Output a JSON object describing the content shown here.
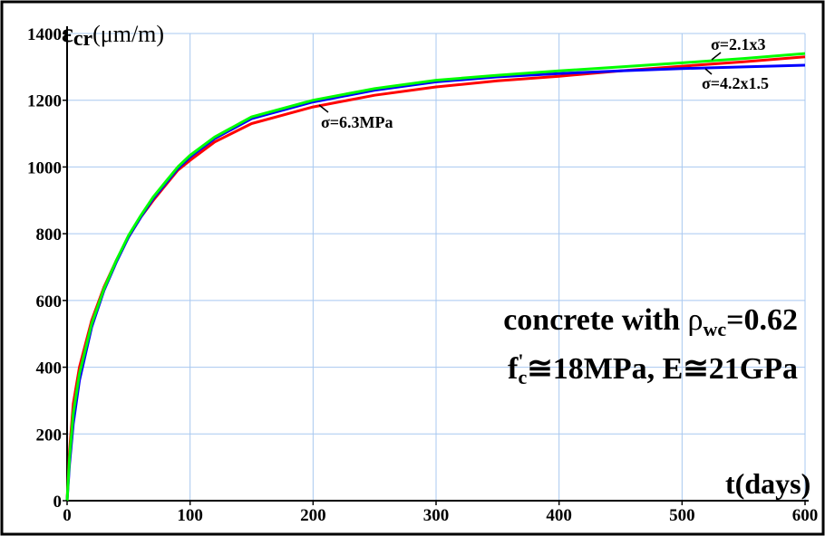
{
  "chart_data": {
    "type": "line",
    "title": "",
    "xlabel": "t(days)",
    "ylabel": "εcr(μm/m)",
    "ylabel_parts": {
      "symbol": "ε",
      "sub": "cr",
      "unit": "(μm/m)"
    },
    "xlim": [
      0,
      600
    ],
    "ylim": [
      0,
      1400
    ],
    "x_ticks": [
      "0",
      "100",
      "200",
      "300",
      "400",
      "500",
      "600"
    ],
    "y_ticks": [
      "0",
      "200",
      "400",
      "600",
      "800",
      "1000",
      "1200",
      "1400"
    ],
    "grid": true,
    "colors": {
      "red": "#ff0000",
      "blue": "#0000ff",
      "green": "#00ff00",
      "grid": "#a8c8f0"
    },
    "series": [
      {
        "name": "σ=6.3MPa",
        "color": "#ff0000",
        "x": [
          0,
          2,
          5,
          10,
          20,
          30,
          40,
          50,
          60,
          70,
          80,
          90,
          100,
          120,
          150,
          200,
          250,
          300,
          350,
          400,
          450,
          500,
          550,
          600
        ],
        "y": [
          0,
          150,
          290,
          400,
          540,
          640,
          720,
          790,
          850,
          900,
          945,
          990,
          1020,
          1075,
          1130,
          1180,
          1215,
          1240,
          1258,
          1272,
          1288,
          1302,
          1315,
          1330
        ]
      },
      {
        "name": "σ=4.2×1.5",
        "color": "#0000ff",
        "x": [
          0,
          2,
          5,
          10,
          20,
          30,
          40,
          50,
          60,
          70,
          80,
          90,
          100,
          120,
          150,
          200,
          250,
          300,
          350,
          400,
          450,
          500,
          550,
          600
        ],
        "y": [
          0,
          110,
          230,
          360,
          520,
          630,
          715,
          790,
          850,
          905,
          950,
          995,
          1030,
          1085,
          1145,
          1195,
          1230,
          1255,
          1270,
          1280,
          1288,
          1295,
          1300,
          1305
        ]
      },
      {
        "name": "σ=2.1×3",
        "color": "#00ff00",
        "x": [
          0,
          2,
          5,
          10,
          20,
          30,
          40,
          50,
          60,
          70,
          80,
          90,
          100,
          120,
          150,
          200,
          250,
          300,
          350,
          400,
          450,
          500,
          550,
          600
        ],
        "y": [
          0,
          130,
          260,
          380,
          530,
          635,
          720,
          795,
          855,
          910,
          955,
          1000,
          1035,
          1090,
          1150,
          1200,
          1235,
          1260,
          1275,
          1288,
          1300,
          1312,
          1325,
          1340
        ]
      }
    ],
    "annotations": {
      "label_red": "σ=6.3MPa",
      "label_green": "σ=2.1x3",
      "label_blue": "σ=4.2x1.5",
      "concrete_line1": "concrete with ρwc=0.62",
      "concrete_line1_parts": {
        "text": "concrete with ",
        "rho": "ρ",
        "sub": "wc",
        "tail": "=0.62"
      },
      "concrete_line2": "f'c≅18MPa, E≅21GPa",
      "concrete_line2_parts": {
        "f": "f",
        "sup": "'",
        "sub": "c",
        "tail": "≅18MPa, E≅21GPa"
      }
    }
  }
}
